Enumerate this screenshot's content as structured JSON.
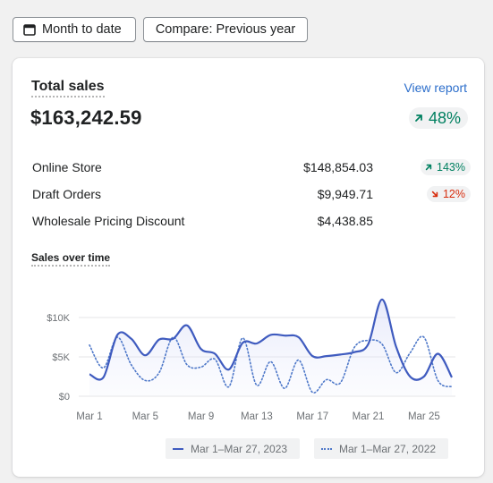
{
  "toolbar": {
    "date_range_label": "Month to date",
    "compare_label": "Compare: Previous year"
  },
  "card": {
    "title": "Total sales",
    "view_report": "View report",
    "total": "$163,242.59",
    "total_change": "48%",
    "total_change_direction": "up",
    "breakdown": [
      {
        "name": "Online Store",
        "amount": "$148,854.03",
        "change": "143%",
        "direction": "up"
      },
      {
        "name": "Draft Orders",
        "amount": "$9,949.71",
        "change": "12%",
        "direction": "down"
      },
      {
        "name": "Wholesale Pricing Discount",
        "amount": "$4,438.85",
        "change": "",
        "direction": ""
      }
    ],
    "chart_title": "Sales over time"
  },
  "colors": {
    "positive": "#008060",
    "negative": "#d72c0d",
    "link": "#2c6ecb",
    "series_current": "#3f5bbf",
    "series_previous": "#4e78c9"
  },
  "chart_data": {
    "type": "line",
    "title": "Sales over time",
    "x_tick_labels": [
      "Mar 1",
      "Mar 5",
      "Mar 9",
      "Mar 13",
      "Mar 17",
      "Mar 21",
      "Mar 25"
    ],
    "y_tick_labels": [
      "$0",
      "$5K",
      "$10K"
    ],
    "ylim": [
      0,
      12500
    ],
    "x": [
      1,
      2,
      3,
      4,
      5,
      6,
      7,
      8,
      9,
      10,
      11,
      12,
      13,
      14,
      15,
      16,
      17,
      18,
      19,
      20,
      21,
      22,
      23,
      24,
      25,
      26,
      27
    ],
    "series": [
      {
        "name": "Mar 1–Mar 27, 2023",
        "style": "solid",
        "values": [
          2800,
          2400,
          7800,
          7300,
          5200,
          7200,
          7300,
          9000,
          6000,
          5400,
          3400,
          6800,
          6700,
          7800,
          7700,
          7500,
          5100,
          5100,
          5300,
          5600,
          6600,
          12300,
          6300,
          2500,
          2500,
          5400,
          2400
        ]
      },
      {
        "name": "Mar 1–Mar 27, 2022",
        "style": "dotted",
        "values": [
          6500,
          3600,
          7500,
          4000,
          2000,
          3000,
          7500,
          4000,
          3700,
          4700,
          1200,
          7400,
          1400,
          4400,
          1000,
          4600,
          500,
          2100,
          1700,
          6200,
          7100,
          6600,
          3000,
          5500,
          7500,
          2000,
          1200
        ]
      }
    ]
  }
}
